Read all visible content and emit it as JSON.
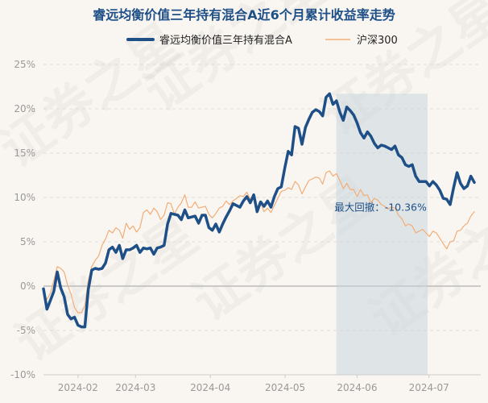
{
  "chart_data": {
    "type": "line",
    "title": "睿远均衡价值三年持有混合A近6个月累计收益率走势",
    "xlabel": "",
    "ylabel": "",
    "ylim": [
      -10,
      25
    ],
    "yticks": [
      "25%",
      "20%",
      "15%",
      "10%",
      "5%",
      "0%",
      "-5%",
      "-10%"
    ],
    "ytick_values": [
      25,
      20,
      15,
      10,
      5,
      0,
      -5,
      -10
    ],
    "xticks": [
      "2024-02",
      "2024-03",
      "2024-04",
      "2024-05",
      "2024-06",
      "2024-07"
    ],
    "xtick_positions": [
      12,
      32,
      58,
      84,
      109,
      134
    ],
    "x_range": [
      0,
      152
    ],
    "series": [
      {
        "name": "睿远均衡价值三年持有混合A",
        "color": "#1e4f87",
        "values": [
          -0.3,
          -2.6,
          -1.6,
          -0.6,
          1.6,
          -0.2,
          -1.2,
          -3.2,
          -3.7,
          -3.5,
          -4.4,
          -4.6,
          -4.6,
          -0.4,
          1.8,
          2.0,
          1.9,
          2.0,
          2.6,
          4.1,
          4.4,
          3.8,
          4.6,
          3.1,
          4.1,
          4.1,
          4.3,
          4.6,
          3.8,
          4.3,
          4.2,
          4.3,
          3.6,
          4.3,
          4.4,
          4.6,
          7.0,
          8.2,
          8.1,
          8.0,
          7.5,
          8.6,
          7.7,
          7.8,
          7.9,
          7.1,
          8.0,
          8.0,
          6.6,
          6.3,
          7.0,
          6.1,
          7.0,
          7.8,
          8.5,
          9.3,
          9.1,
          8.9,
          9.6,
          10.1,
          9.4,
          10.3,
          8.4,
          9.5,
          9.0,
          9.6,
          8.9,
          10.1,
          11.0,
          11.2,
          13.3,
          15.2,
          14.8,
          18.0,
          17.8,
          16.0,
          17.9,
          18.8,
          19.6,
          19.9,
          19.7,
          19.2,
          21.3,
          21.7,
          20.5,
          20.9,
          19.6,
          18.7,
          20.2,
          19.8,
          19.3,
          18.4,
          17.3,
          16.7,
          17.4,
          16.9,
          16.1,
          15.6,
          15.9,
          15.8,
          15.6,
          15.4,
          15.8,
          14.8,
          14.5,
          13.7,
          13.5,
          13.7,
          12.4,
          11.8,
          11.8,
          11.8,
          11.3,
          11.8,
          11.4,
          10.8,
          9.9,
          9.8,
          9.2,
          11.1,
          12.8,
          11.6,
          11.0,
          11.3,
          12.4,
          11.7
        ],
        "x_step": 1.198
      },
      {
        "name": "沪深300",
        "color": "#f2ad78",
        "values": [
          -0.8,
          -1.5,
          -0.8,
          0.6,
          2.2,
          2.0,
          1.6,
          0.1,
          -0.9,
          -2.4,
          -3.0,
          -3.0,
          -2.2,
          0.6,
          2.2,
          2.9,
          3.4,
          4.6,
          5.3,
          6.3,
          6.0,
          6.6,
          6.3,
          5.4,
          7.1,
          6.4,
          6.8,
          6.1,
          6.6,
          8.3,
          8.6,
          8.1,
          8.8,
          8.4,
          7.5,
          8.0,
          9.4,
          9.3,
          8.1,
          8.9,
          9.4,
          10.3,
          8.9,
          8.9,
          9.5,
          8.8,
          8.9,
          9.0,
          8.1,
          7.7,
          8.2,
          8.8,
          9.0,
          9.6,
          9.2,
          9.6,
          9.9,
          10.2,
          10.1,
          10.6,
          9.8,
          10.0,
          8.9,
          9.4,
          8.4,
          8.8,
          8.3,
          9.1,
          9.9,
          10.7,
          10.8,
          11.1,
          10.9,
          11.8,
          11.4,
          10.4,
          11.2,
          11.9,
          12.1,
          12.3,
          12.2,
          11.5,
          12.8,
          13.0,
          12.4,
          12.7,
          11.9,
          11.0,
          11.6,
          10.9,
          10.9,
          10.1,
          10.9,
          10.2,
          10.3,
          9.4,
          9.9,
          9.7,
          9.2,
          9.0,
          8.7,
          8.9,
          8.8,
          8.0,
          7.6,
          6.8,
          7.0,
          6.8,
          6.0,
          6.2,
          6.4,
          6.0,
          5.6,
          6.2,
          6.0,
          5.4,
          4.8,
          4.2,
          5.0,
          5.1,
          6.2,
          6.3,
          6.8,
          7.1,
          7.9,
          8.4
        ],
        "x_step": 1.198
      }
    ],
    "max_drawdown": {
      "label": "最大回撤：-10.36%",
      "start_x": 101.8,
      "end_x": 133.5,
      "peak": 21.7
    },
    "legend": {
      "position": "top"
    },
    "grid": {
      "horizontal": "dashed",
      "vertical": false
    },
    "watermark": "证券之星"
  }
}
